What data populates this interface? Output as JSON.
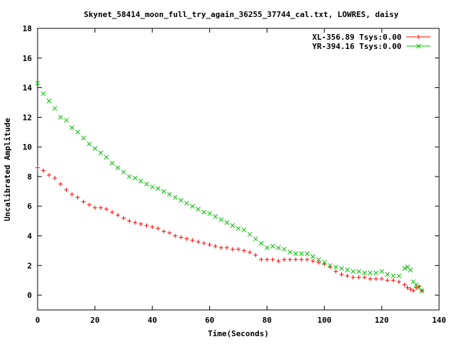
{
  "chart_data": {
    "type": "scatter",
    "title": "Skynet_58414_moon_full_try_again_36255_37744_cal.txt, LOWRES, daisy",
    "xlabel": "Time(Seconds)",
    "ylabel": "Uncalibrated Amplitude",
    "xlim": [
      0,
      140
    ],
    "ylim": [
      -1,
      18
    ],
    "x_ticks": [
      "0",
      "20",
      "40",
      "60",
      "80",
      "100",
      "120",
      "140"
    ],
    "y_ticks": [
      "0",
      "2",
      "4",
      "6",
      "8",
      "10",
      "12",
      "14",
      "16",
      "18"
    ],
    "grid": false,
    "legend_position": "top-right",
    "series": [
      {
        "name": "XL-356.89 Tsys:0.00",
        "color": "#ff0000",
        "marker": "plus",
        "x": [
          0,
          2,
          4,
          6,
          8,
          10,
          12,
          14,
          16,
          18,
          20,
          22,
          24,
          26,
          28,
          30,
          32,
          34,
          36,
          38,
          40,
          42,
          44,
          46,
          48,
          50,
          52,
          54,
          56,
          58,
          60,
          62,
          64,
          66,
          68,
          70,
          72,
          74,
          76,
          78,
          80,
          82,
          84,
          86,
          88,
          90,
          92,
          94,
          96,
          98,
          100,
          102,
          104,
          106,
          108,
          110,
          112,
          114,
          116,
          118,
          120,
          122,
          124,
          126,
          128,
          129,
          130,
          131,
          132,
          133,
          134
        ],
        "y": [
          8.6,
          8.4,
          8.1,
          7.9,
          7.5,
          7.1,
          6.8,
          6.6,
          6.3,
          6.1,
          5.9,
          5.9,
          5.8,
          5.6,
          5.4,
          5.2,
          5.0,
          4.9,
          4.8,
          4.7,
          4.6,
          4.5,
          4.3,
          4.2,
          4.0,
          3.9,
          3.8,
          3.7,
          3.6,
          3.5,
          3.4,
          3.3,
          3.2,
          3.2,
          3.1,
          3.1,
          3.0,
          2.9,
          2.7,
          2.4,
          2.4,
          2.4,
          2.3,
          2.4,
          2.4,
          2.4,
          2.4,
          2.4,
          2.3,
          2.2,
          2.1,
          1.9,
          1.6,
          1.4,
          1.3,
          1.2,
          1.2,
          1.2,
          1.1,
          1.1,
          1.1,
          1.0,
          1.0,
          0.9,
          0.7,
          0.5,
          0.4,
          0.3,
          0.5,
          0.6,
          0.3
        ]
      },
      {
        "name": "YR-394.16 Tsys:0.00",
        "color": "#00c000",
        "marker": "cross",
        "x": [
          0,
          2,
          4,
          6,
          8,
          10,
          12,
          14,
          16,
          18,
          20,
          22,
          24,
          26,
          28,
          30,
          32,
          34,
          36,
          38,
          40,
          42,
          44,
          46,
          48,
          50,
          52,
          54,
          56,
          58,
          60,
          62,
          64,
          66,
          68,
          70,
          72,
          74,
          76,
          78,
          80,
          82,
          84,
          86,
          88,
          90,
          92,
          94,
          96,
          98,
          100,
          102,
          104,
          106,
          108,
          110,
          112,
          114,
          116,
          118,
          120,
          122,
          124,
          126,
          128,
          129,
          130,
          131,
          132,
          133,
          134
        ],
        "y": [
          14.3,
          13.6,
          13.1,
          12.6,
          12.0,
          11.8,
          11.3,
          11.0,
          10.6,
          10.2,
          9.9,
          9.6,
          9.3,
          8.9,
          8.6,
          8.3,
          8.0,
          7.9,
          7.7,
          7.5,
          7.3,
          7.2,
          7.0,
          6.8,
          6.6,
          6.4,
          6.2,
          6.0,
          5.8,
          5.6,
          5.5,
          5.3,
          5.1,
          4.9,
          4.7,
          4.5,
          4.4,
          4.1,
          3.8,
          3.5,
          3.2,
          3.3,
          3.2,
          3.1,
          2.9,
          2.8,
          2.8,
          2.8,
          2.6,
          2.4,
          2.2,
          2.0,
          1.9,
          1.8,
          1.7,
          1.6,
          1.6,
          1.5,
          1.5,
          1.5,
          1.6,
          1.4,
          1.3,
          1.3,
          1.8,
          1.9,
          1.7,
          0.9,
          0.7,
          0.5,
          0.3
        ]
      }
    ]
  }
}
